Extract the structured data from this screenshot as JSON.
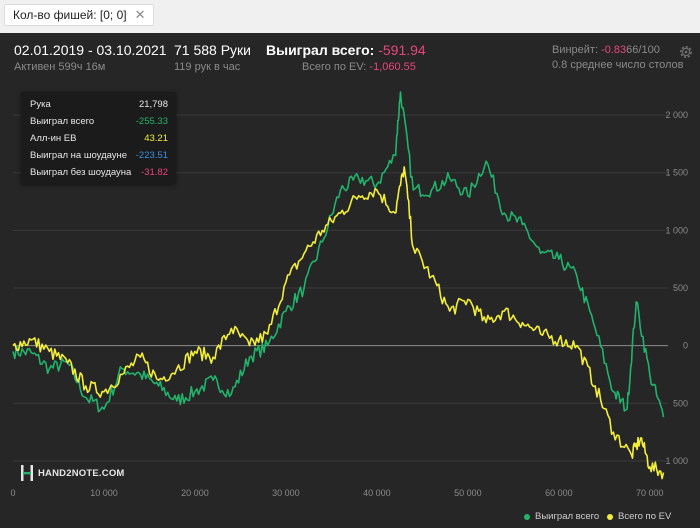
{
  "filter_tab": {
    "label": "Кол-во фишей: [0; 0]",
    "close": "✕"
  },
  "header": {
    "date_range": "02.01.2019 - 03.10.2021",
    "active": "Активен 599ч 16м",
    "hands": "71 588 Руки",
    "hands_per_hour": "119 рук в час",
    "won_label": "Выиграл всего:",
    "won_value": "-591.94",
    "ev_label": "Всего по EV:",
    "ev_value": "-1,060.55",
    "winrate_label": "Винрейт:",
    "winrate_value": "-0.83",
    "winrate_unit": "66/100",
    "avg_tables": "0.8 среднее число столов"
  },
  "tooltip": {
    "rows": [
      {
        "label": "Рука",
        "value": "21,798",
        "color": "#e6e6e6"
      },
      {
        "label": "Выиграл всего",
        "value": "-255.33",
        "color": "#21b36b"
      },
      {
        "label": "Алл-ин EВ",
        "value": "43.21",
        "color": "#f2ee3a"
      },
      {
        "label": "Выиграл на шоудауне",
        "value": "-223.51",
        "color": "#3a8fe0"
      },
      {
        "label": "Выиграл без шоудауна",
        "value": "-31.82",
        "color": "#e8457a"
      }
    ]
  },
  "logo_text": "HAND2NOTE.COM",
  "colors": {
    "green": "#21b36b",
    "yellow": "#f2ee3a",
    "grid": "#3a3a3a",
    "zero": "#8c8c8c",
    "negative": "#e8457a"
  },
  "chart_data": {
    "type": "line",
    "xlim": [
      0,
      72000
    ],
    "ylim": [
      -1200,
      2200
    ],
    "x_ticks": [
      0,
      10000,
      20000,
      30000,
      40000,
      50000,
      60000,
      70000
    ],
    "x_tick_labels": [
      "0",
      "10 000",
      "20 000",
      "30 000",
      "40 000",
      "50 000",
      "60 000",
      "70 000"
    ],
    "y_ticks": [
      2000,
      1500,
      1000,
      500,
      0,
      -500,
      -1000
    ],
    "y_tick_labels": [
      "2 000",
      "1 500",
      "1 000",
      "500",
      "0",
      "500",
      "1 000"
    ],
    "legend_position": "bottom-right",
    "series": [
      {
        "name": "Выиграл всего",
        "color": "#21b36b",
        "x": [
          0,
          2000,
          4000,
          6000,
          8000,
          10000,
          12000,
          14000,
          16000,
          18000,
          20000,
          22000,
          24000,
          26000,
          28000,
          30000,
          32000,
          34000,
          36000,
          38000,
          40000,
          42000,
          42600,
          44000,
          46000,
          48000,
          50000,
          52000,
          54000,
          56000,
          58000,
          60000,
          62000,
          64000,
          66000,
          67500,
          68500,
          70000,
          71500
        ],
        "y": [
          -50,
          -60,
          -200,
          -150,
          -450,
          -550,
          -200,
          -250,
          -350,
          -480,
          -400,
          -300,
          -420,
          -100,
          0,
          300,
          500,
          900,
          1350,
          1450,
          1400,
          1650,
          2200,
          1350,
          1350,
          1450,
          1300,
          1600,
          1150,
          1050,
          800,
          750,
          600,
          150,
          -400,
          -550,
          380,
          -250,
          -620
        ]
      },
      {
        "name": "Всего по EV",
        "color": "#f2ee3a",
        "x": [
          0,
          2000,
          4000,
          6000,
          8000,
          10000,
          12000,
          14000,
          16000,
          18000,
          20000,
          22000,
          24000,
          26000,
          28000,
          30000,
          32000,
          34000,
          36000,
          38000,
          40000,
          42000,
          43000,
          44000,
          46000,
          48000,
          50000,
          52000,
          54000,
          56000,
          58000,
          60000,
          62000,
          64000,
          66000,
          68000,
          69000,
          70000,
          71500
        ],
        "y": [
          0,
          50,
          -50,
          -150,
          -350,
          -400,
          -250,
          -100,
          -300,
          -200,
          -50,
          -100,
          150,
          0,
          100,
          550,
          800,
          1000,
          1150,
          1300,
          1350,
          1150,
          1550,
          850,
          600,
          300,
          400,
          200,
          300,
          200,
          100,
          50,
          0,
          -350,
          -750,
          -950,
          -800,
          -1050,
          -1100
        ]
      }
    ]
  }
}
